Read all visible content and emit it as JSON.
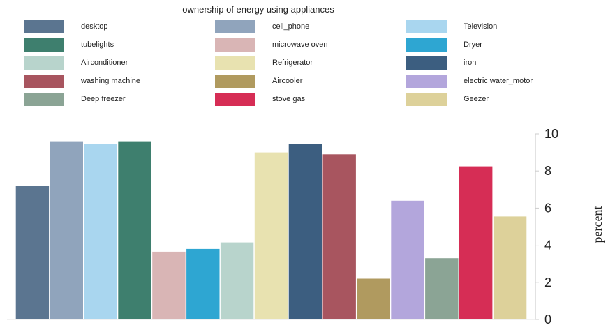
{
  "chart_data": {
    "type": "bar",
    "title": "ownership of energy using appliances",
    "ylabel": "percent",
    "ylim": [
      0,
      10
    ],
    "yticks": [
      0,
      2,
      4,
      6,
      8,
      10
    ],
    "y_axis_side": "right",
    "legend_position": "top",
    "categories": [
      "desktop",
      "cell_phone",
      "Television",
      "tubelights",
      "microwave oven",
      "Dryer",
      "Airconditioner",
      "Refrigerator",
      "iron",
      "washing machine",
      "Aircooler",
      "electric water_motor",
      "Deep freezer",
      "stove gas",
      "Geezer"
    ],
    "series": [
      {
        "values": [
          7.2,
          9.6,
          9.45,
          9.6,
          3.65,
          3.8,
          4.15,
          9.0,
          9.45,
          8.9,
          2.2,
          6.4,
          3.3,
          8.25,
          5.55
        ]
      }
    ],
    "bar_order": [
      "desktop",
      "cell_phone",
      "Television",
      "tubelights",
      "microwave oven",
      "Dryer",
      "Airconditioner",
      "Refrigerator",
      "iron",
      "washing machine",
      "Aircooler",
      "electric water_motor",
      "Deep freezer",
      "stove gas",
      "Geezer"
    ],
    "colors": {
      "desktop": "#5b7590",
      "cell_phone": "#90a4bc",
      "Television": "#a9d6ef",
      "tubelights": "#3e7f6e",
      "microwave oven": "#d9b5b5",
      "Dryer": "#2ea6d2",
      "Airconditioner": "#b8d4cc",
      "Refrigerator": "#e8e2b0",
      "iron": "#3c5e80",
      "washing machine": "#a8555f",
      "Aircooler": "#b09a5f",
      "electric water_motor": "#b3a6dc",
      "Deep freezer": "#8ba495",
      "stove gas": "#d62d55",
      "Geezer": "#ddd19a"
    }
  },
  "legend": {
    "columns": [
      [
        "desktop",
        "tubelights",
        "Airconditioner",
        "washing machine",
        "Deep freezer"
      ],
      [
        "cell_phone",
        "microwave oven",
        "Refrigerator",
        "Aircooler",
        "stove gas"
      ],
      [
        "Television",
        "Dryer",
        "iron",
        "electric water_motor",
        "Geezer"
      ]
    ]
  }
}
